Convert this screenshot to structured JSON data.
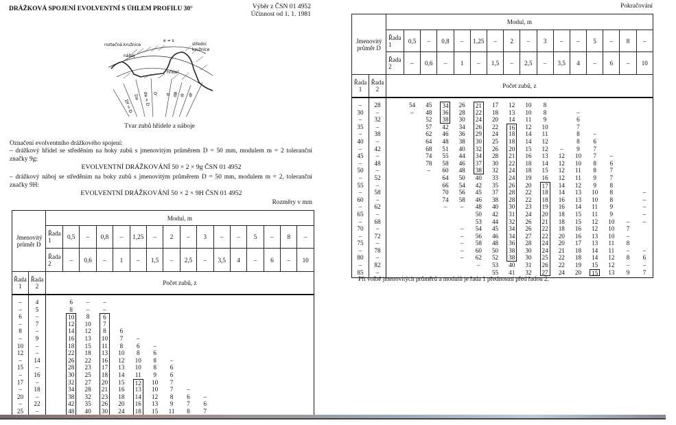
{
  "left_page": {
    "title": "DRÁŽKOVÁ SPOJENÍ EVOLVENTNÍ S ÚHLEM PROFILU 30°",
    "std_ref": [
      "Výběr z ČSN 01 4952",
      "Účinnost od 1. 1. 1981"
    ],
    "diagram": {
      "labels": {
        "pitch_circle": "roztečná kružnice",
        "e_s": "e = s",
        "mid_circle_1": "střední",
        "mid_circle_2": "kružnice",
        "hub": "náboj",
        "shaft": "hřídel",
        "d_f_hub": "Df = D",
        "d_a_hub": "Da",
        "d_a_shaft": "da = D",
        "d_prime": "D'",
        "d": "d",
        "d_b": "dB",
        "d_i": "di",
        "d_f": "df"
      }
    },
    "caption": "Tvar zubů hřídele a náboje",
    "designation": {
      "intro": "Označení evolventního drážkového spojení:",
      "item1": "– drážkový hřídel se středěním na boky zubů s jmenovitým průměrem D = 50 mm, modulem m = 2 toleranční značky 9g:",
      "code1": "EVOLVENTNÍ DRÁŽKOVÁNÍ  50 × 2 × 9g  ČSN 01 4952",
      "item2": "– drážkový náboj se středěním na boky zubů s jmenovitým průměrem D = 50 mm, modulem m = 2, toleranční značky 9H:",
      "code2": "EVOLVENTNÍ DRÁŽKOVÁNÍ  50 × 2 × 9H  ČSN 01 4952"
    },
    "units": "Rozměry v mm"
  },
  "table_header": {
    "nominal_diameter": "Jmenovitý průměr D",
    "modul_label": "Modul, m",
    "rada1_label": "Řada 1",
    "rada2_label": "Řada 2",
    "rada1_values": [
      "0,5",
      "–",
      "0,8",
      "–",
      "1,25",
      "–",
      "2",
      "–",
      "3",
      "–",
      "–",
      "5",
      "–",
      "8",
      "–"
    ],
    "rada2_values": [
      "–",
      "0,6",
      "–",
      "1",
      "–",
      "1,5",
      "–",
      "2,5",
      "–",
      "3,5",
      "4",
      "–",
      "6",
      "–",
      "10"
    ],
    "pocet_label": "Počet zubů, z"
  },
  "left_table": {
    "rows": [
      {
        "d1": "–",
        "d2": "4",
        "z": [
          "6",
          "–",
          "–"
        ]
      },
      {
        "d1": "–",
        "d2": "5",
        "z": [
          "8",
          "–",
          "–"
        ]
      },
      {
        "d1": "6",
        "d2": "–",
        "z": [
          "10",
          "8",
          "6"
        ]
      },
      {
        "d1": "–",
        "d2": "7",
        "z": [
          "12",
          "10",
          "7"
        ]
      },
      {
        "d1": "8",
        "d2": "–",
        "z": [
          "14",
          "12",
          "8",
          "6"
        ]
      },
      {
        "d1": "–",
        "d2": "9",
        "z": [
          "16",
          "13",
          "10",
          "7",
          "–"
        ]
      },
      {
        "d1": "10",
        "d2": "–",
        "z": [
          "18",
          "15",
          "11",
          "8",
          "6",
          "–"
        ]
      },
      {
        "d1": "12",
        "d2": "–",
        "z": [
          "22",
          "18",
          "13",
          "10",
          "8",
          "6"
        ]
      },
      {
        "d1": "–",
        "d2": "14",
        "z": [
          "26",
          "22",
          "16",
          "12",
          "10",
          "8",
          "–"
        ]
      },
      {
        "d1": "15",
        "d2": "–",
        "z": [
          "28",
          "23",
          "17",
          "13",
          "10",
          "8",
          "6"
        ]
      },
      {
        "d1": "–",
        "d2": "16",
        "z": [
          "30",
          "25",
          "18",
          "14",
          "11",
          "9",
          "6"
        ]
      },
      {
        "d1": "17",
        "d2": "–",
        "z": [
          "32",
          "27",
          "20",
          "15",
          "12",
          "10",
          "7"
        ]
      },
      {
        "d1": "–",
        "d2": "18",
        "z": [
          "34",
          "28",
          "21",
          "16",
          "13",
          "10",
          "7",
          "–"
        ]
      },
      {
        "d1": "20",
        "d2": "–",
        "z": [
          "38",
          "32",
          "23",
          "18",
          "14",
          "12",
          "8",
          "6",
          "–"
        ]
      },
      {
        "d1": "–",
        "d2": "22",
        "z": [
          "42",
          "35",
          "26",
          "20",
          "16",
          "13",
          "9",
          "7",
          "6"
        ]
      },
      {
        "d1": "25",
        "d2": "–",
        "z": [
          "48",
          "40",
          "30",
          "24",
          "18",
          "15",
          "11",
          "8",
          "7"
        ]
      }
    ],
    "boxes": [
      {
        "col": 0,
        "rows": [
          2,
          15
        ]
      },
      {
        "col": 2,
        "rows": [
          2,
          15
        ]
      },
      {
        "col": 4,
        "rows": [
          11,
          15
        ]
      }
    ]
  },
  "right_page": {
    "continued": "Pokračování",
    "note": "Při volbě jmenovitých průměrů a modulů je řada 1 přednostní před řadou 2."
  },
  "right_table": {
    "rows": [
      {
        "d1": "–",
        "d2": "28",
        "z": [
          "54",
          "45",
          "34",
          "26",
          "21",
          "17",
          "12",
          "10",
          "8"
        ]
      },
      {
        "d1": "30",
        "d2": "–",
        "z": [
          "–",
          "48",
          "36",
          "28",
          "22",
          "18",
          "13",
          "10",
          "8",
          null,
          "–"
        ]
      },
      {
        "d1": "–",
        "d2": "32",
        "z": [
          null,
          "52",
          "38",
          "30",
          "24",
          "20",
          "14",
          "11",
          "9",
          null,
          "6"
        ]
      },
      {
        "d1": "35",
        "d2": "–",
        "z": [
          null,
          "57",
          "42",
          "34",
          "26",
          "22",
          "16",
          "12",
          "10",
          null,
          "7"
        ]
      },
      {
        "d1": "–",
        "d2": "38",
        "z": [
          null,
          "62",
          "46",
          "36",
          "29",
          "24",
          "18",
          "14",
          "11",
          null,
          "8",
          "–"
        ]
      },
      {
        "d1": "40",
        "d2": "–",
        "z": [
          null,
          "64",
          "48",
          "38",
          "30",
          "25",
          "18",
          "14",
          "12",
          null,
          "8",
          "6"
        ]
      },
      {
        "d1": "–",
        "d2": "42",
        "z": [
          null,
          "68",
          "51",
          "40",
          "32",
          "26",
          "20",
          "15",
          "12",
          "–",
          "9",
          "7"
        ]
      },
      {
        "d1": "45",
        "d2": "–",
        "z": [
          null,
          "74",
          "55",
          "44",
          "34",
          "28",
          "21",
          "16",
          "13",
          "12",
          "10",
          "7",
          "–"
        ]
      },
      {
        "d1": "–",
        "d2": "48",
        "z": [
          null,
          "78",
          "58",
          "46",
          "37",
          "30",
          "22",
          "18",
          "14",
          "12",
          "10",
          "8",
          "6"
        ]
      },
      {
        "d1": "50",
        "d2": "–",
        "z": [
          null,
          "–",
          "60",
          "48",
          "38",
          "32",
          "24",
          "18",
          "15",
          "12",
          "11",
          "8",
          "7"
        ]
      },
      {
        "d1": "–",
        "d2": "52",
        "z": [
          null,
          null,
          "64",
          "50",
          "40",
          "33",
          "24",
          "19",
          "16",
          "12",
          "11",
          "9",
          "7"
        ]
      },
      {
        "d1": "55",
        "d2": "–",
        "z": [
          null,
          null,
          "66",
          "54",
          "42",
          "35",
          "26",
          "20",
          "17",
          "14",
          "12",
          "9",
          "8"
        ]
      },
      {
        "d1": "–",
        "d2": "58",
        "z": [
          null,
          null,
          "70",
          "56",
          "45",
          "37",
          "28",
          "22",
          "18",
          "14",
          "13",
          "10",
          "8",
          null,
          "–"
        ]
      },
      {
        "d1": "60",
        "d2": "–",
        "z": [
          null,
          null,
          "74",
          "58",
          "46",
          "38",
          "28",
          "22",
          "18",
          "16",
          "13",
          "10",
          "8",
          null,
          "–"
        ]
      },
      {
        "d1": "–",
        "d2": "62",
        "z": [
          null,
          null,
          "–",
          "–",
          "48",
          "40",
          "30",
          "23",
          "19",
          "16",
          "14",
          "11",
          "9",
          null,
          "–"
        ]
      },
      {
        "d1": "65",
        "d2": "–",
        "z": [
          null,
          null,
          null,
          null,
          "50",
          "42",
          "31",
          "24",
          "20",
          "18",
          "15",
          "11",
          "9",
          null,
          "–"
        ]
      },
      {
        "d1": "–",
        "d2": "68",
        "z": [
          null,
          null,
          null,
          null,
          "53",
          "44",
          "32",
          "26",
          "21",
          "18",
          "15",
          "12",
          "10",
          "–",
          "–"
        ]
      },
      {
        "d1": "70",
        "d2": "–",
        "z": [
          null,
          null,
          null,
          "–",
          "54",
          "45",
          "34",
          "26",
          "22",
          "18",
          "16",
          "12",
          "10",
          "7"
        ]
      },
      {
        "d1": "–",
        "d2": "72",
        "z": [
          null,
          null,
          null,
          "–",
          "56",
          "46",
          "34",
          "27",
          "22",
          "20",
          "16",
          "13",
          "10",
          "–"
        ]
      },
      {
        "d1": "75",
        "d2": "–",
        "z": [
          null,
          null,
          null,
          "–",
          "58",
          "48",
          "36",
          "28",
          "24",
          "20",
          "17",
          "13",
          "11",
          "8"
        ]
      },
      {
        "d1": "–",
        "d2": "78",
        "z": [
          null,
          null,
          null,
          "–",
          "60",
          "50",
          "38",
          "30",
          "24",
          "21",
          "18",
          "14",
          "11",
          "–",
          "–"
        ]
      },
      {
        "d1": "80",
        "d2": "–",
        "z": [
          null,
          null,
          null,
          "–",
          "62",
          "52",
          "38",
          "30",
          "25",
          "22",
          "18",
          "14",
          "12",
          "8",
          "6"
        ]
      },
      {
        "d1": "–",
        "d2": "82",
        "z": [
          null,
          null,
          null,
          null,
          "–",
          "53",
          "40",
          "31",
          "26",
          "22",
          "19",
          "15",
          "12",
          "–",
          "–"
        ]
      },
      {
        "d1": "85",
        "d2": "–",
        "z": [
          null,
          null,
          null,
          null,
          null,
          "55",
          "41",
          "32",
          "27",
          "24",
          "20",
          "15",
          "13",
          "9",
          "7"
        ]
      }
    ],
    "boxes": [
      {
        "col": 2,
        "rows": [
          0,
          2
        ]
      },
      {
        "col": 4,
        "rows": [
          0,
          9
        ]
      },
      {
        "col": 6,
        "rows": [
          3,
          21
        ]
      },
      {
        "col": 8,
        "rows": [
          11,
          23
        ]
      },
      {
        "col": 11,
        "rows": [
          23,
          23
        ]
      }
    ]
  }
}
